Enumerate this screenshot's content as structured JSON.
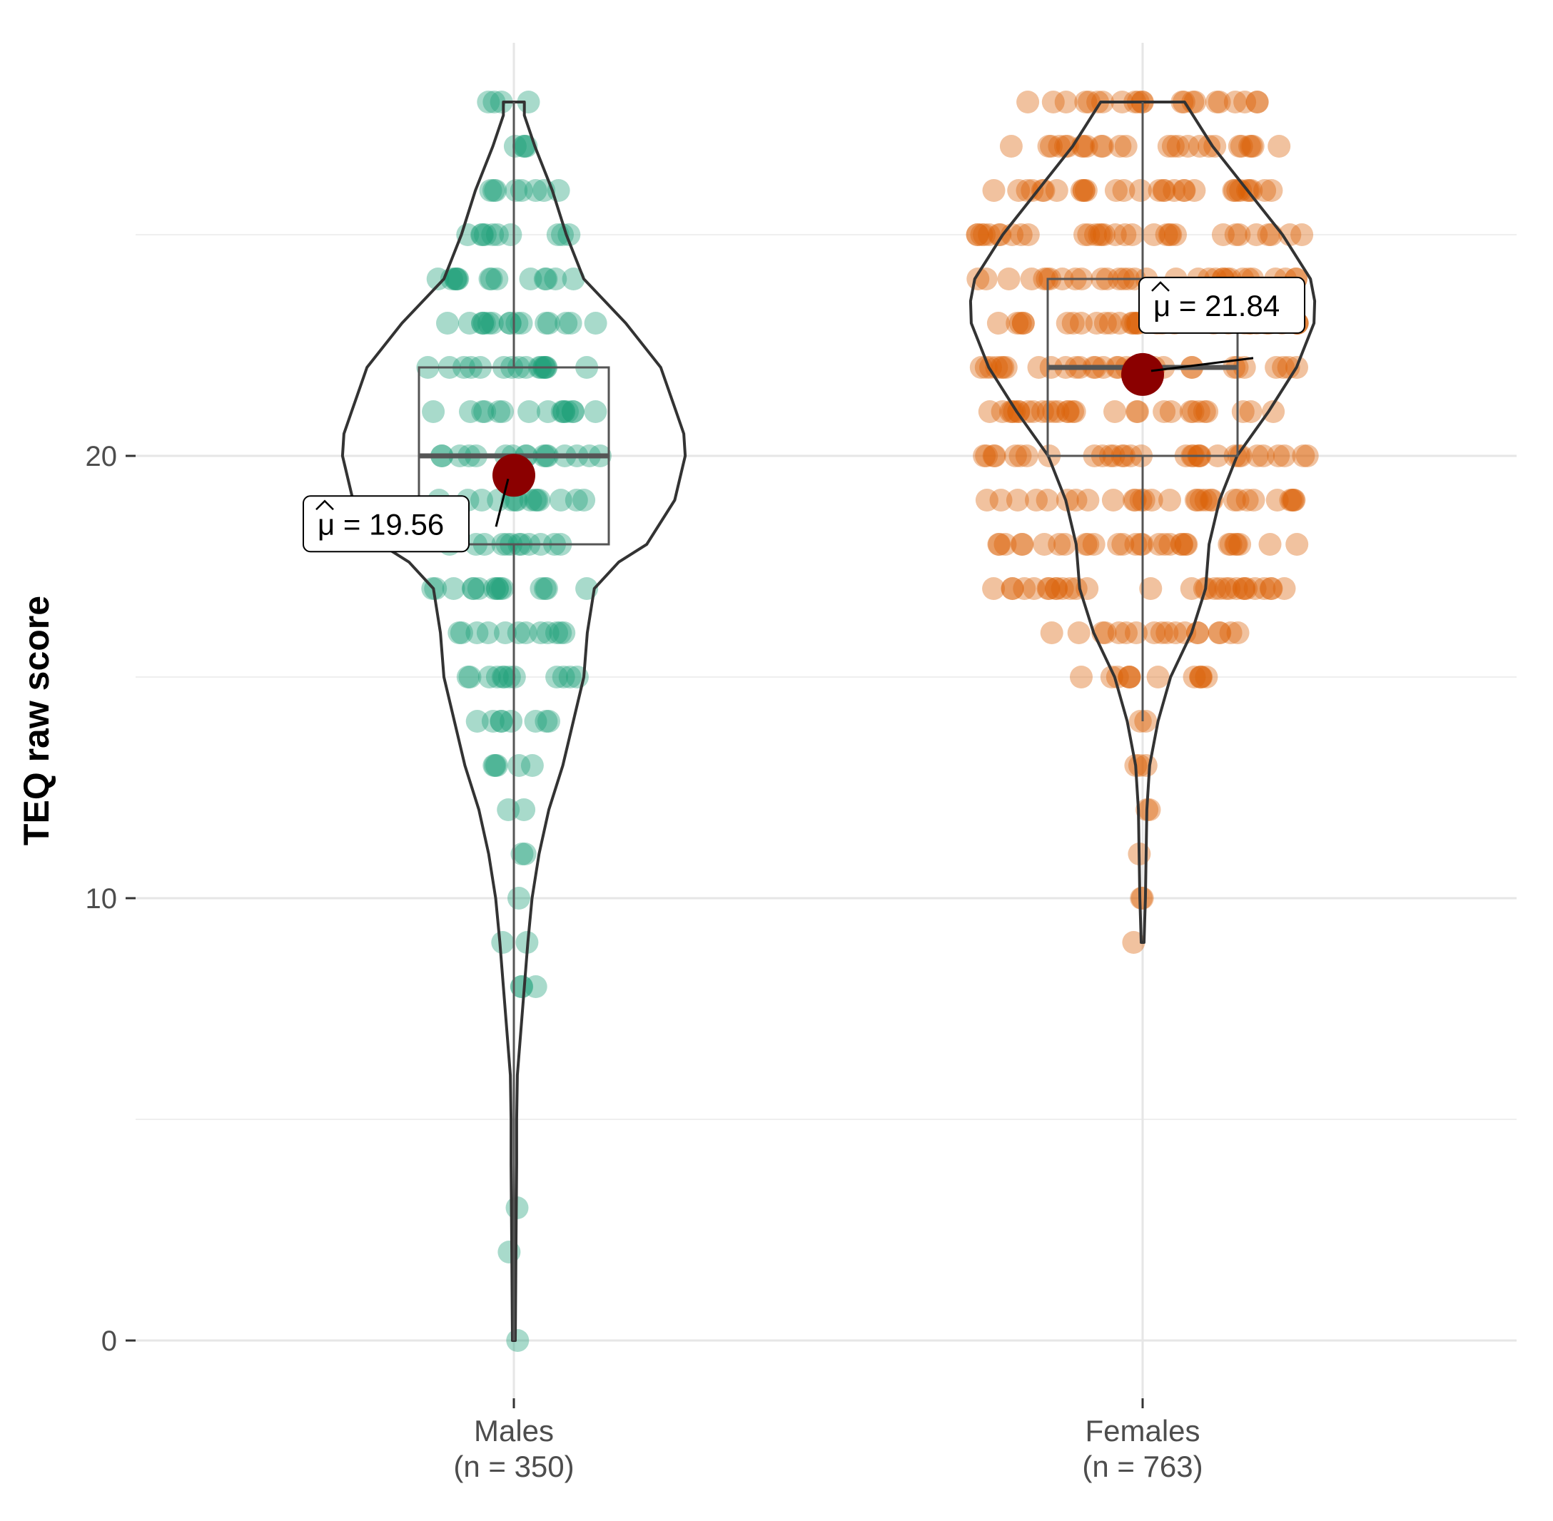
{
  "chart_data": {
    "type": "violin",
    "title": "",
    "xlabel": "",
    "ylabel": "TEQ raw score",
    "ylim": [
      0,
      28
    ],
    "yticks": [
      0,
      10,
      20
    ],
    "grid": true,
    "legend": "none",
    "mean_symbol": "μ",
    "colors": {
      "Males": "#1b9e77",
      "Females": "#d95f02",
      "mean_point": "#8b0000",
      "outline": "#333333",
      "box": "#555555",
      "grid": "#ebebeb"
    },
    "groups": [
      {
        "category": "Males",
        "n_label": "(n = 350)",
        "mean": 19.56,
        "mean_label": "19.56",
        "box": {
          "whisker_low": 0,
          "q1": 18,
          "median": 20,
          "q3": 22,
          "whisker_high": 28
        },
        "density": [
          [
            0,
            0.02
          ],
          [
            2,
            0.03
          ],
          [
            4,
            0.04
          ],
          [
            5,
            0.04
          ],
          [
            6,
            0.05
          ],
          [
            7,
            0.1
          ],
          [
            8,
            0.15
          ],
          [
            9,
            0.2
          ],
          [
            10,
            0.26
          ],
          [
            11,
            0.36
          ],
          [
            12,
            0.5
          ],
          [
            13,
            0.7
          ],
          [
            14,
            0.85
          ],
          [
            15,
            1.0
          ],
          [
            16,
            1.05
          ],
          [
            17,
            1.15
          ],
          [
            17.6,
            1.5
          ],
          [
            18,
            1.9
          ],
          [
            19,
            2.3
          ],
          [
            20,
            2.45
          ],
          [
            20.5,
            2.43
          ],
          [
            21,
            2.32
          ],
          [
            22,
            2.1
          ],
          [
            23,
            1.6
          ],
          [
            24,
            1.0
          ],
          [
            25,
            0.75
          ],
          [
            26,
            0.55
          ],
          [
            27,
            0.3
          ],
          [
            27.7,
            0.15
          ],
          [
            28,
            0.15
          ]
        ],
        "score_rows": [
          {
            "score": 0,
            "n": 1
          },
          {
            "score": 2,
            "n": 1
          },
          {
            "score": 3,
            "n": 1
          },
          {
            "score": 8,
            "n": 3
          },
          {
            "score": 9,
            "n": 2
          },
          {
            "score": 10,
            "n": 1
          },
          {
            "score": 11,
            "n": 2
          },
          {
            "score": 12,
            "n": 2
          },
          {
            "score": 13,
            "n": 5
          },
          {
            "score": 14,
            "n": 8
          },
          {
            "score": 15,
            "n": 12
          },
          {
            "score": 16,
            "n": 12
          },
          {
            "score": 17,
            "n": 15
          },
          {
            "score": 18,
            "n": 12
          },
          {
            "score": 19,
            "n": 14
          },
          {
            "score": 20,
            "n": 16
          },
          {
            "score": 21,
            "n": 15
          },
          {
            "score": 22,
            "n": 16
          },
          {
            "score": 23,
            "n": 16
          },
          {
            "score": 24,
            "n": 14
          },
          {
            "score": 25,
            "n": 10
          },
          {
            "score": 26,
            "n": 8
          },
          {
            "score": 27,
            "n": 4
          },
          {
            "score": 28,
            "n": 4
          }
        ]
      },
      {
        "category": "Females",
        "n_label": "(n = 763)",
        "mean": 21.84,
        "mean_label": "21.84",
        "box": {
          "whisker_low": 14,
          "q1": 20,
          "median": 22,
          "q3": 24,
          "whisker_high": 28
        },
        "density": [
          [
            9,
            0.02
          ],
          [
            9.5,
            0.03
          ],
          [
            10,
            0.04
          ],
          [
            11,
            0.05
          ],
          [
            12,
            0.06
          ],
          [
            13,
            0.1
          ],
          [
            14,
            0.22
          ],
          [
            15,
            0.4
          ],
          [
            16,
            0.7
          ],
          [
            17,
            0.9
          ],
          [
            18,
            0.95
          ],
          [
            19,
            1.1
          ],
          [
            20,
            1.35
          ],
          [
            21,
            1.8
          ],
          [
            22,
            2.2
          ],
          [
            23,
            2.45
          ],
          [
            23.5,
            2.46
          ],
          [
            24,
            2.4
          ],
          [
            25,
            2.0
          ],
          [
            26,
            1.5
          ],
          [
            27,
            1.0
          ],
          [
            28,
            0.6
          ]
        ],
        "score_rows": [
          {
            "score": 9,
            "n": 1
          },
          {
            "score": 10,
            "n": 2
          },
          {
            "score": 11,
            "n": 1
          },
          {
            "score": 12,
            "n": 2
          },
          {
            "score": 13,
            "n": 3
          },
          {
            "score": 14,
            "n": 2
          },
          {
            "score": 15,
            "n": 12
          },
          {
            "score": 16,
            "n": 18
          },
          {
            "score": 17,
            "n": 30
          },
          {
            "score": 18,
            "n": 30
          },
          {
            "score": 19,
            "n": 30
          },
          {
            "score": 20,
            "n": 32
          },
          {
            "score": 21,
            "n": 30
          },
          {
            "score": 22,
            "n": 32
          },
          {
            "score": 23,
            "n": 32
          },
          {
            "score": 24,
            "n": 32
          },
          {
            "score": 25,
            "n": 32
          },
          {
            "score": 26,
            "n": 30
          },
          {
            "score": 27,
            "n": 26
          },
          {
            "score": 28,
            "n": 22
          }
        ]
      }
    ]
  }
}
